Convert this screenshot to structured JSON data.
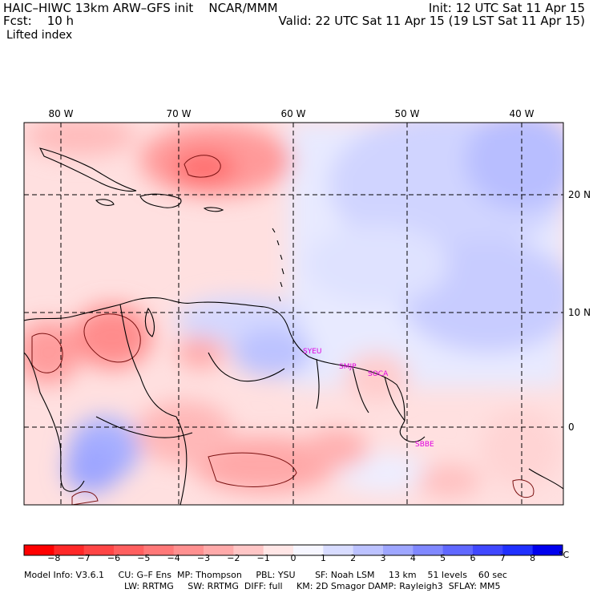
{
  "header": {
    "title": "HAIC–HIWC 13km ARW–GFS init    NCAR/MMM",
    "fcst": "Fcst:    10 h",
    "field": "Lifted index",
    "init": "Init: 12 UTC Sat 11 Apr 15",
    "valid": "Valid: 22 UTC Sat 11 Apr 15 (19 LST Sat 11 Apr 15)"
  },
  "map": {
    "lon_labels": [
      "80 W",
      "70 W",
      "60 W",
      "50 W",
      "40 W"
    ],
    "lat_labels": [
      "20 N",
      "10 N",
      "0"
    ],
    "stations": [
      "SYEU",
      "SMJP",
      "SOCA",
      "SBBE"
    ],
    "station_color": "#e000e0",
    "gridline_color": "#000000"
  },
  "colorbar": {
    "labels": [
      "−8",
      "−7",
      "−6",
      "−5",
      "−4",
      "−3",
      "−2",
      "−1",
      "0",
      "1",
      "2",
      "3",
      "4",
      "5",
      "6",
      "7",
      "8"
    ],
    "unit": "°C",
    "colors": [
      "#ff0000",
      "#ff2828",
      "#ff4545",
      "#ff5f5f",
      "#ff7878",
      "#ff9090",
      "#ffaaaa",
      "#ffc6c6",
      "#ffe6e6",
      "#f6f6ff",
      "#d8dcff",
      "#bcc2ff",
      "#9ea6ff",
      "#8088ff",
      "#6068ff",
      "#4048ff",
      "#2030ff",
      "#0000ee"
    ]
  },
  "footer": {
    "line1": "Model Info: V3.6.1     CU: G–F Ens  MP: Thompson     PBL: YSU       SF: Noah LSM     13 km    51 levels    60 sec",
    "line2": "LW: RRTMG     SW: RRTMG  DIFF: full     KM: 2D Smagor DAMP: Rayleigh3  SFLAY: MM5"
  }
}
